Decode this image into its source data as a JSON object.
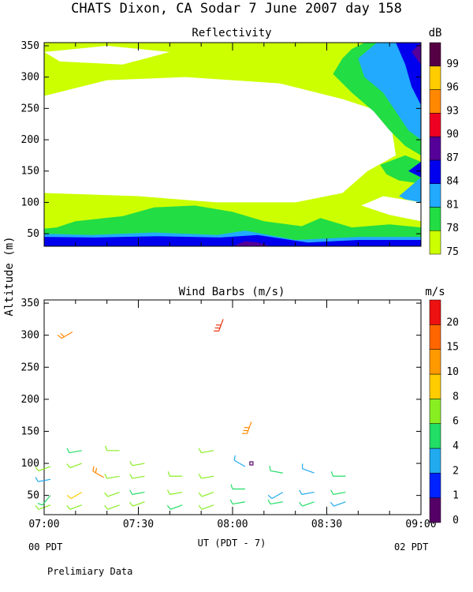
{
  "header": {
    "title": "CHATS Dixon, CA  Sodar   7 June 2007  day 158"
  },
  "shared_axis": {
    "ylabel": "Altitude (m)",
    "xlabel": "UT  (PDT - 7)",
    "x_ticks": [
      "07:00",
      "07:30",
      "08:00",
      "08:30",
      "09:00"
    ],
    "x_left_sub": "00 PDT",
    "x_right_sub": "02 PDT",
    "footnote": "Prelimiary Data"
  },
  "chart_data": [
    {
      "type": "heatmap",
      "title": "Reflectivity",
      "colorbar_label": "dB",
      "colorbar_ticks": [
        "75",
        "78",
        "81",
        "84",
        "87",
        "90",
        "93",
        "96",
        "99"
      ],
      "colorbar_colors": [
        "#ccff00",
        "#22dd44",
        "#22aaff",
        "#0000ee",
        "#550099",
        "#ee0022",
        "#ff8800",
        "#ffcc00",
        "#550044"
      ],
      "x_range": [
        "07:00",
        "09:00"
      ],
      "ylim": [
        30,
        355
      ],
      "y_ticks": [
        50,
        100,
        150,
        200,
        250,
        300,
        350
      ],
      "levels": [
        {
          "bound": 78,
          "color": "#22dd44",
          "description": "strong returns near surface and top-right",
          "regions": [
            [
              [
                0,
                30
              ],
              [
                120,
                30
              ],
              [
                120,
                60
              ],
              [
                110,
                65
              ],
              [
                98,
                60
              ],
              [
                88,
                75
              ],
              [
                82,
                62
              ],
              [
                70,
                70
              ],
              [
                60,
                85
              ],
              [
                48,
                95
              ],
              [
                35,
                92
              ],
              [
                25,
                78
              ],
              [
                10,
                70
              ],
              [
                4,
                60
              ],
              [
                0,
                58
              ]
            ],
            [
              [
                102,
                355
              ],
              [
                120,
                355
              ],
              [
                120,
                175
              ],
              [
                115,
                190
              ],
              [
                110,
                215
              ],
              [
                105,
                245
              ],
              [
                98,
                275
              ],
              [
                92,
                305
              ],
              [
                95,
                330
              ],
              [
                98,
                345
              ]
            ],
            [
              [
                107,
                160
              ],
              [
                115,
                175
              ],
              [
                120,
                165
              ],
              [
                120,
                130
              ],
              [
                113,
                135
              ],
              [
                109,
                145
              ]
            ]
          ]
        },
        {
          "bound": 81,
          "color": "#22aaff",
          "description": "higher reflectivity near top-right and surface",
          "regions": [
            [
              [
                0,
                30
              ],
              [
                120,
                30
              ],
              [
                120,
                45
              ],
              [
                100,
                45
              ],
              [
                80,
                40
              ],
              [
                64,
                55
              ],
              [
                55,
                48
              ],
              [
                35,
                52
              ],
              [
                15,
                48
              ],
              [
                0,
                50
              ]
            ],
            [
              [
                106,
                355
              ],
              [
                120,
                355
              ],
              [
                120,
                200
              ],
              [
                116,
                215
              ],
              [
                112,
                245
              ],
              [
                108,
                275
              ],
              [
                102,
                300
              ],
              [
                100,
                330
              ]
            ],
            [
              [
                113,
                110
              ],
              [
                120,
                140
              ],
              [
                120,
                100
              ],
              [
                115,
                105
              ]
            ]
          ]
        },
        {
          "bound": 84,
          "color": "#0000ee",
          "description": "peak bands",
          "regions": [
            [
              [
                0,
                30
              ],
              [
                120,
                30
              ],
              [
                120,
                40
              ],
              [
                100,
                40
              ],
              [
                84,
                36
              ],
              [
                68,
                48
              ],
              [
                56,
                44
              ],
              [
                36,
                46
              ],
              [
                16,
                44
              ],
              [
                0,
                45
              ]
            ],
            [
              [
                112,
                355
              ],
              [
                120,
                355
              ],
              [
                120,
                255
              ],
              [
                117,
                285
              ],
              [
                115,
                320
              ]
            ],
            [
              [
                116,
                150
              ],
              [
                120,
                165
              ],
              [
                120,
                140
              ]
            ]
          ]
        },
        {
          "bound": 87,
          "color": "#550099",
          "description": "core maxima",
          "regions": [
            [
              [
                60,
                30
              ],
              [
                72,
                30
              ],
              [
                68,
                36
              ],
              [
                64,
                38
              ]
            ],
            [
              [
                117,
                340
              ],
              [
                120,
                355
              ],
              [
                120,
                320
              ]
            ]
          ]
        }
      ]
    },
    {
      "type": "scatter",
      "title": "Wind Barbs (m/s)",
      "colorbar_label": "m/s",
      "colorbar_ticks": [
        "0",
        "1",
        "2",
        "4",
        "6",
        "8",
        "10",
        "15",
        "20"
      ],
      "colorbar_colors": [
        "#550066",
        "#0022ff",
        "#22aaee",
        "#22dd66",
        "#88ee22",
        "#ffcc00",
        "#ff9900",
        "#ff6600",
        "#ee1111"
      ],
      "x_range": [
        "07:00",
        "09:00"
      ],
      "ylim": [
        20,
        355
      ],
      "y_ticks": [
        50,
        100,
        150,
        200,
        250,
        300,
        350
      ],
      "barb_params": "speed (m/s) and direction (degrees from) per observation",
      "x_units": "minutes after 07:00 UT",
      "observations": [
        {
          "t": 2,
          "alt": 95,
          "speed": 5,
          "dir": 250,
          "color": "#88ee22"
        },
        {
          "t": 2,
          "alt": 75,
          "speed": 3,
          "dir": 260,
          "color": "#22aaee"
        },
        {
          "t": 2,
          "alt": 50,
          "speed": 4,
          "dir": 220,
          "color": "#22dd66"
        },
        {
          "t": 2,
          "alt": 35,
          "speed": 5,
          "dir": 250,
          "color": "#88ee22"
        },
        {
          "t": 12,
          "alt": 120,
          "speed": 4,
          "dir": 260,
          "color": "#22dd66"
        },
        {
          "t": 12,
          "alt": 100,
          "speed": 5,
          "dir": 250,
          "color": "#88ee22"
        },
        {
          "t": 12,
          "alt": 55,
          "speed": 6,
          "dir": 240,
          "color": "#ffcc00"
        },
        {
          "t": 12,
          "alt": 35,
          "speed": 5,
          "dir": 250,
          "color": "#88ee22"
        },
        {
          "t": 24,
          "alt": 120,
          "speed": 6,
          "dir": 270,
          "color": "#88ee22"
        },
        {
          "t": 24,
          "alt": 80,
          "speed": 5,
          "dir": 260,
          "color": "#88ee22"
        },
        {
          "t": 24,
          "alt": 55,
          "speed": 6,
          "dir": 250,
          "color": "#88ee22"
        },
        {
          "t": 24,
          "alt": 35,
          "speed": 4,
          "dir": 250,
          "color": "#88ee22"
        },
        {
          "t": 32,
          "alt": 100,
          "speed": 5,
          "dir": 260,
          "color": "#88ee22"
        },
        {
          "t": 32,
          "alt": 80,
          "speed": 5,
          "dir": 260,
          "color": "#88ee22"
        },
        {
          "t": 32,
          "alt": 55,
          "speed": 4,
          "dir": 260,
          "color": "#22dd66"
        },
        {
          "t": 32,
          "alt": 40,
          "speed": 5,
          "dir": 250,
          "color": "#88ee22"
        },
        {
          "t": 44,
          "alt": 80,
          "speed": 4,
          "dir": 270,
          "color": "#88ee22"
        },
        {
          "t": 44,
          "alt": 55,
          "speed": 5,
          "dir": 260,
          "color": "#88ee22"
        },
        {
          "t": 44,
          "alt": 35,
          "speed": 4,
          "dir": 250,
          "color": "#22dd66"
        },
        {
          "t": 54,
          "alt": 120,
          "speed": 5,
          "dir": 260,
          "color": "#88ee22"
        },
        {
          "t": 54,
          "alt": 80,
          "speed": 5,
          "dir": 260,
          "color": "#88ee22"
        },
        {
          "t": 54,
          "alt": 55,
          "speed": 5,
          "dir": 250,
          "color": "#88ee22"
        },
        {
          "t": 54,
          "alt": 35,
          "speed": 5,
          "dir": 250,
          "color": "#88ee22"
        },
        {
          "t": 64,
          "alt": 95,
          "speed": 3,
          "dir": 300,
          "color": "#22aaee"
        },
        {
          "t": 64,
          "alt": 60,
          "speed": 4,
          "dir": 270,
          "color": "#22dd66"
        },
        {
          "t": 64,
          "alt": 40,
          "speed": 4,
          "dir": 260,
          "color": "#22dd66"
        },
        {
          "t": 76,
          "alt": 85,
          "speed": 4,
          "dir": 280,
          "color": "#22dd66"
        },
        {
          "t": 76,
          "alt": 55,
          "speed": 3,
          "dir": 240,
          "color": "#22aaee"
        },
        {
          "t": 76,
          "alt": 40,
          "speed": 4,
          "dir": 260,
          "color": "#22dd66"
        },
        {
          "t": 86,
          "alt": 85,
          "speed": 3,
          "dir": 290,
          "color": "#22aaee"
        },
        {
          "t": 86,
          "alt": 55,
          "speed": 3,
          "dir": 260,
          "color": "#22aaee"
        },
        {
          "t": 86,
          "alt": 40,
          "speed": 4,
          "dir": 250,
          "color": "#22dd66"
        },
        {
          "t": 96,
          "alt": 80,
          "speed": 4,
          "dir": 270,
          "color": "#22dd66"
        },
        {
          "t": 96,
          "alt": 55,
          "speed": 4,
          "dir": 260,
          "color": "#22dd66"
        },
        {
          "t": 96,
          "alt": 40,
          "speed": 3,
          "dir": 250,
          "color": "#22aaee"
        },
        {
          "t": 9,
          "alt": 305,
          "speed": 12,
          "dir": 240,
          "color": "#ff8800"
        },
        {
          "t": 57,
          "alt": 325,
          "speed": 17,
          "dir": 200,
          "color": "#ee3311"
        },
        {
          "t": 66,
          "alt": 165,
          "speed": 14,
          "dir": 200,
          "color": "#ff8800"
        },
        {
          "t": 19,
          "alt": 78,
          "speed": 11,
          "dir": 300,
          "color": "#ff8800"
        },
        {
          "t": 66,
          "alt": 100,
          "speed": 0,
          "dir": 0,
          "color": "#550066"
        }
      ]
    }
  ]
}
